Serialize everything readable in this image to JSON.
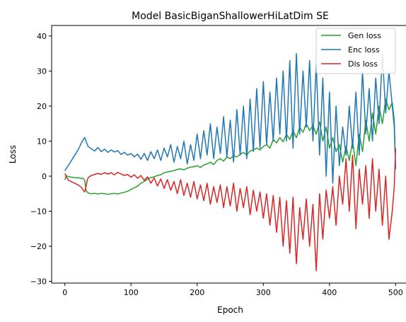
{
  "chart_data": {
    "type": "line",
    "title": "Model BasicBiganShallowerHiLatDim SE",
    "xlabel": "Epoch",
    "ylabel": "Loss",
    "xlim": [
      -20,
      520
    ],
    "ylim": [
      -30.5,
      43
    ],
    "xticks": [
      0,
      100,
      200,
      300,
      400,
      500
    ],
    "yticks": [
      -30,
      -20,
      -10,
      0,
      10,
      20,
      30,
      40
    ],
    "grid": false,
    "legend_position": "top-right",
    "series": [
      {
        "name": "Gen loss",
        "color": "#2ca02c",
        "points": [
          [
            0,
            -1.0
          ],
          [
            2,
            0.2
          ],
          [
            5,
            -0.1
          ],
          [
            10,
            -0.3
          ],
          [
            15,
            -0.4
          ],
          [
            20,
            -0.5
          ],
          [
            25,
            -0.6
          ],
          [
            28,
            -0.7
          ],
          [
            30,
            -1.2
          ],
          [
            32,
            -4.0
          ],
          [
            35,
            -4.8
          ],
          [
            40,
            -5.0
          ],
          [
            45,
            -4.9
          ],
          [
            50,
            -5.1
          ],
          [
            55,
            -4.9
          ],
          [
            60,
            -5.0
          ],
          [
            65,
            -5.2
          ],
          [
            70,
            -5.0
          ],
          [
            75,
            -4.9
          ],
          [
            80,
            -5.1
          ],
          [
            85,
            -4.8
          ],
          [
            90,
            -4.6
          ],
          [
            95,
            -4.3
          ],
          [
            100,
            -3.8
          ],
          [
            105,
            -3.3
          ],
          [
            110,
            -2.8
          ],
          [
            115,
            -2.0
          ],
          [
            120,
            -1.5
          ],
          [
            125,
            -0.8
          ],
          [
            130,
            -0.4
          ],
          [
            135,
            -0.2
          ],
          [
            140,
            0.2
          ],
          [
            145,
            0.4
          ],
          [
            150,
            1.0
          ],
          [
            155,
            1.2
          ],
          [
            160,
            1.4
          ],
          [
            165,
            1.6
          ],
          [
            170,
            1.9
          ],
          [
            175,
            2.1
          ],
          [
            180,
            1.8
          ],
          [
            185,
            2.3
          ],
          [
            190,
            2.6
          ],
          [
            195,
            2.7
          ],
          [
            200,
            3.0
          ],
          [
            205,
            2.5
          ],
          [
            210,
            3.2
          ],
          [
            215,
            3.5
          ],
          [
            220,
            4.0
          ],
          [
            225,
            3.3
          ],
          [
            230,
            4.5
          ],
          [
            235,
            5.0
          ],
          [
            240,
            4.3
          ],
          [
            245,
            5.5
          ],
          [
            250,
            5.0
          ],
          [
            255,
            5.8
          ],
          [
            260,
            5.5
          ],
          [
            265,
            6.2
          ],
          [
            270,
            6.8
          ],
          [
            275,
            6.0
          ],
          [
            280,
            7.2
          ],
          [
            285,
            7.5
          ],
          [
            290,
            8.0
          ],
          [
            295,
            7.5
          ],
          [
            300,
            8.5
          ],
          [
            305,
            9.0
          ],
          [
            310,
            8.0
          ],
          [
            315,
            10.5
          ],
          [
            320,
            9.5
          ],
          [
            325,
            11.0
          ],
          [
            330,
            9.8
          ],
          [
            335,
            12.0
          ],
          [
            340,
            10.5
          ],
          [
            345,
            13.0
          ],
          [
            350,
            11.0
          ],
          [
            355,
            14.0
          ],
          [
            360,
            12.5
          ],
          [
            365,
            15.0
          ],
          [
            370,
            13.0
          ],
          [
            375,
            14.5
          ],
          [
            380,
            12.0
          ],
          [
            385,
            15.5
          ],
          [
            390,
            10.0
          ],
          [
            395,
            14.0
          ],
          [
            400,
            8.0
          ],
          [
            405,
            11.0
          ],
          [
            410,
            7.0
          ],
          [
            415,
            9.0
          ],
          [
            420,
            4.0
          ],
          [
            425,
            8.5
          ],
          [
            430,
            4.5
          ],
          [
            435,
            10.0
          ],
          [
            440,
            3.0
          ],
          [
            445,
            12.0
          ],
          [
            450,
            7.0
          ],
          [
            455,
            16.0
          ],
          [
            460,
            10.0
          ],
          [
            465,
            18.0
          ],
          [
            470,
            12.0
          ],
          [
            475,
            20.0
          ],
          [
            480,
            15.0
          ],
          [
            485,
            22.0
          ],
          [
            490,
            19.0
          ],
          [
            495,
            21.0
          ],
          [
            498,
            16.0
          ],
          [
            500,
            2.0
          ]
        ]
      },
      {
        "name": "Enc loss",
        "color": "#1f77b4",
        "points": [
          [
            0,
            1.5
          ],
          [
            5,
            3.0
          ],
          [
            10,
            4.5
          ],
          [
            15,
            6.0
          ],
          [
            20,
            7.5
          ],
          [
            25,
            9.5
          ],
          [
            28,
            10.5
          ],
          [
            30,
            11.0
          ],
          [
            33,
            9.5
          ],
          [
            35,
            8.5
          ],
          [
            40,
            7.8
          ],
          [
            45,
            7.2
          ],
          [
            50,
            8.2
          ],
          [
            55,
            7.0
          ],
          [
            60,
            7.7
          ],
          [
            65,
            6.8
          ],
          [
            70,
            7.5
          ],
          [
            75,
            6.9
          ],
          [
            80,
            7.3
          ],
          [
            85,
            6.2
          ],
          [
            90,
            6.8
          ],
          [
            95,
            6.0
          ],
          [
            100,
            6.5
          ],
          [
            105,
            5.5
          ],
          [
            110,
            6.3
          ],
          [
            115,
            4.8
          ],
          [
            120,
            6.5
          ],
          [
            125,
            4.5
          ],
          [
            130,
            7.0
          ],
          [
            135,
            5.0
          ],
          [
            140,
            7.5
          ],
          [
            145,
            4.5
          ],
          [
            150,
            8.0
          ],
          [
            155,
            5.5
          ],
          [
            160,
            9.0
          ],
          [
            165,
            4.0
          ],
          [
            170,
            8.5
          ],
          [
            175,
            5.0
          ],
          [
            180,
            10.0
          ],
          [
            185,
            3.5
          ],
          [
            190,
            9.0
          ],
          [
            195,
            4.5
          ],
          [
            200,
            12.0
          ],
          [
            205,
            5.0
          ],
          [
            210,
            13.0
          ],
          [
            215,
            6.0
          ],
          [
            220,
            15.0
          ],
          [
            225,
            5.0
          ],
          [
            230,
            14.0
          ],
          [
            235,
            6.5
          ],
          [
            240,
            17.0
          ],
          [
            245,
            5.5
          ],
          [
            250,
            16.0
          ],
          [
            255,
            4.0
          ],
          [
            260,
            19.0
          ],
          [
            265,
            6.0
          ],
          [
            270,
            20.0
          ],
          [
            275,
            5.0
          ],
          [
            280,
            22.0
          ],
          [
            285,
            7.0
          ],
          [
            290,
            25.0
          ],
          [
            295,
            8.0
          ],
          [
            300,
            27.0
          ],
          [
            305,
            9.0
          ],
          [
            310,
            24.0
          ],
          [
            315,
            10.0
          ],
          [
            320,
            28.0
          ],
          [
            325,
            12.0
          ],
          [
            330,
            30.0
          ],
          [
            335,
            10.0
          ],
          [
            340,
            33.0
          ],
          [
            345,
            8.0
          ],
          [
            350,
            35.0
          ],
          [
            355,
            12.0
          ],
          [
            360,
            30.0
          ],
          [
            365,
            14.0
          ],
          [
            370,
            33.0
          ],
          [
            375,
            10.0
          ],
          [
            380,
            32.0
          ],
          [
            385,
            6.0
          ],
          [
            390,
            28.0
          ],
          [
            395,
            0.0
          ],
          [
            400,
            24.0
          ],
          [
            405,
            -2.0
          ],
          [
            410,
            20.0
          ],
          [
            415,
            3.0
          ],
          [
            420,
            14.0
          ],
          [
            425,
            6.0
          ],
          [
            430,
            20.0
          ],
          [
            435,
            8.0
          ],
          [
            440,
            24.0
          ],
          [
            445,
            6.0
          ],
          [
            450,
            30.0
          ],
          [
            455,
            12.0
          ],
          [
            460,
            25.0
          ],
          [
            465,
            10.0
          ],
          [
            470,
            28.0
          ],
          [
            475,
            15.0
          ],
          [
            480,
            35.0
          ],
          [
            485,
            18.0
          ],
          [
            490,
            30.0
          ],
          [
            495,
            20.0
          ],
          [
            498,
            14.0
          ],
          [
            500,
            2.0
          ]
        ]
      },
      {
        "name": "Dis loss",
        "color": "#d62728",
        "points": [
          [
            0,
            0.8
          ],
          [
            3,
            -0.5
          ],
          [
            6,
            -1.2
          ],
          [
            10,
            -1.6
          ],
          [
            15,
            -2.0
          ],
          [
            20,
            -2.5
          ],
          [
            25,
            -3.2
          ],
          [
            28,
            -4.0
          ],
          [
            30,
            -4.5
          ],
          [
            32,
            -3.0
          ],
          [
            34,
            -1.0
          ],
          [
            36,
            -0.3
          ],
          [
            40,
            0.2
          ],
          [
            45,
            0.5
          ],
          [
            50,
            0.8
          ],
          [
            55,
            0.5
          ],
          [
            60,
            1.0
          ],
          [
            65,
            0.6
          ],
          [
            70,
            1.0
          ],
          [
            75,
            0.4
          ],
          [
            80,
            1.1
          ],
          [
            85,
            0.6
          ],
          [
            90,
            0.2
          ],
          [
            95,
            0.5
          ],
          [
            100,
            -0.3
          ],
          [
            105,
            0.4
          ],
          [
            110,
            -0.6
          ],
          [
            115,
            0.2
          ],
          [
            120,
            -1.2
          ],
          [
            125,
            -0.2
          ],
          [
            130,
            -2.0
          ],
          [
            135,
            -0.5
          ],
          [
            140,
            -2.8
          ],
          [
            145,
            -0.8
          ],
          [
            150,
            -3.5
          ],
          [
            155,
            -1.0
          ],
          [
            160,
            -4.0
          ],
          [
            165,
            -1.5
          ],
          [
            170,
            -5.0
          ],
          [
            175,
            -1.0
          ],
          [
            180,
            -5.5
          ],
          [
            185,
            -2.0
          ],
          [
            190,
            -6.0
          ],
          [
            195,
            -1.5
          ],
          [
            200,
            -6.5
          ],
          [
            205,
            -2.5
          ],
          [
            210,
            -7.0
          ],
          [
            215,
            -2.0
          ],
          [
            220,
            -8.0
          ],
          [
            225,
            -3.0
          ],
          [
            230,
            -7.5
          ],
          [
            235,
            -2.5
          ],
          [
            240,
            -9.0
          ],
          [
            245,
            -3.0
          ],
          [
            250,
            -8.5
          ],
          [
            255,
            -2.0
          ],
          [
            260,
            -10.0
          ],
          [
            265,
            -3.5
          ],
          [
            270,
            -9.0
          ],
          [
            275,
            -3.0
          ],
          [
            280,
            -11.0
          ],
          [
            285,
            -4.0
          ],
          [
            290,
            -10.0
          ],
          [
            295,
            -4.5
          ],
          [
            300,
            -12.0
          ],
          [
            305,
            -5.0
          ],
          [
            310,
            -14.0
          ],
          [
            315,
            -5.5
          ],
          [
            320,
            -16.0
          ],
          [
            325,
            -6.0
          ],
          [
            330,
            -20.0
          ],
          [
            335,
            -7.0
          ],
          [
            340,
            -22.0
          ],
          [
            345,
            -6.0
          ],
          [
            350,
            -25.0
          ],
          [
            355,
            -9.0
          ],
          [
            360,
            -18.0
          ],
          [
            365,
            -6.5
          ],
          [
            370,
            -20.0
          ],
          [
            375,
            -8.0
          ],
          [
            380,
            -27.0
          ],
          [
            385,
            -5.0
          ],
          [
            390,
            -18.0
          ],
          [
            395,
            -4.0
          ],
          [
            400,
            -12.0
          ],
          [
            405,
            -3.0
          ],
          [
            410,
            -14.0
          ],
          [
            415,
            0.0
          ],
          [
            420,
            -8.0
          ],
          [
            425,
            5.0
          ],
          [
            430,
            -10.0
          ],
          [
            435,
            6.0
          ],
          [
            440,
            -15.0
          ],
          [
            445,
            2.0
          ],
          [
            450,
            -8.0
          ],
          [
            455,
            3.0
          ],
          [
            460,
            -12.0
          ],
          [
            465,
            5.0
          ],
          [
            470,
            -10.0
          ],
          [
            475,
            2.0
          ],
          [
            480,
            -14.0
          ],
          [
            485,
            0.0
          ],
          [
            490,
            -18.0
          ],
          [
            495,
            -10.0
          ],
          [
            498,
            -3.0
          ],
          [
            500,
            8.0
          ]
        ]
      }
    ]
  }
}
